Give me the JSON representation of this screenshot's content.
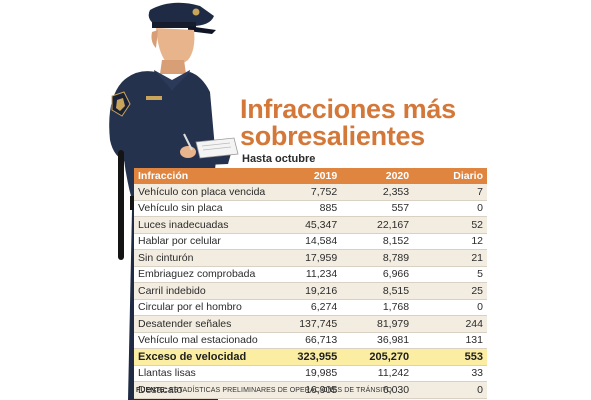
{
  "title_line1": "Infracciones más",
  "title_line2": "sobresalientes",
  "subtitle": "Hasta octubre",
  "colors": {
    "accent": "#e0853f",
    "title": "#d4783a",
    "highlight": "#fbeea2",
    "stripe": "#f3ede1"
  },
  "table": {
    "headers": [
      "Infracción",
      "2019",
      "2020",
      "Diario"
    ],
    "rows": [
      [
        "Vehículo con placa vencida",
        "7,752",
        "2,353",
        "7"
      ],
      [
        "Vehículo sin placa",
        "885",
        "557",
        "0"
      ],
      [
        "Luces inadecuadas",
        "45,347",
        "22,167",
        "52"
      ],
      [
        "Hablar por celular",
        "14,584",
        "8,152",
        "12"
      ],
      [
        "Sin cinturón",
        "17,959",
        "8,789",
        "21"
      ],
      [
        "Embriaguez comprobada",
        "11,234",
        "6,966",
        "5"
      ],
      [
        "Carril indebido",
        "19,216",
        "8,515",
        "25"
      ],
      [
        "Circular por el hombro",
        "6,274",
        "1,768",
        "0"
      ],
      [
        "Desatender señales",
        "137,745",
        "81,979",
        "244"
      ],
      [
        "Vehículo mal estacionado",
        "66,713",
        "36,981",
        "131"
      ],
      [
        "Exceso de velocidad",
        "323,955",
        "205,270",
        "553"
      ],
      [
        "Llantas lisas",
        "19,985",
        "11,242",
        "33"
      ],
      [
        "Desacato",
        "16,905",
        "6,030",
        "0"
      ]
    ],
    "highlight_row": 10
  },
  "source_label": "FUENTE:",
  "source_text": "FUENTE: ESTADÍSTICAS PRELIMINARES DE OPERACIONES DE TRÁNSITO"
}
